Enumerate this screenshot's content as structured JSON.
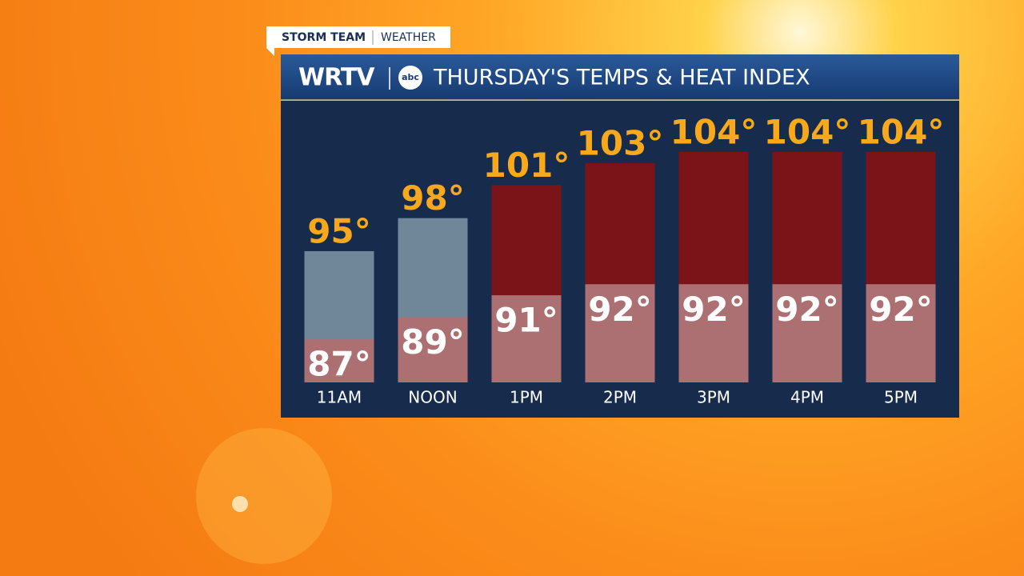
{
  "brand": {
    "tag_left": "STORM TEAM",
    "tag_right": "WEATHER",
    "station": "WRTV",
    "network": "abc"
  },
  "chart_data": {
    "type": "bar",
    "title": "THURSDAY'S TEMPS & HEAT INDEX",
    "categories": [
      "11AM",
      "NOON",
      "1PM",
      "2PM",
      "3PM",
      "4PM",
      "5PM"
    ],
    "series": [
      {
        "name": "Heat Index",
        "colors": [
          "#6f8798",
          "#6f8798",
          "#7a1419",
          "#7a1419",
          "#7a1419",
          "#7a1419",
          "#7a1419"
        ],
        "values": [
          95,
          98,
          101,
          103,
          104,
          104,
          104
        ],
        "value_labels": [
          "95°",
          "98°",
          "101°",
          "103°",
          "104°",
          "104°",
          "104°"
        ]
      },
      {
        "name": "Temperature",
        "color": "#ac6f72",
        "values": [
          87,
          89,
          91,
          92,
          92,
          92,
          92
        ],
        "value_labels": [
          "87°",
          "89°",
          "91°",
          "92°",
          "92°",
          "92°",
          "92°"
        ]
      }
    ]
  }
}
